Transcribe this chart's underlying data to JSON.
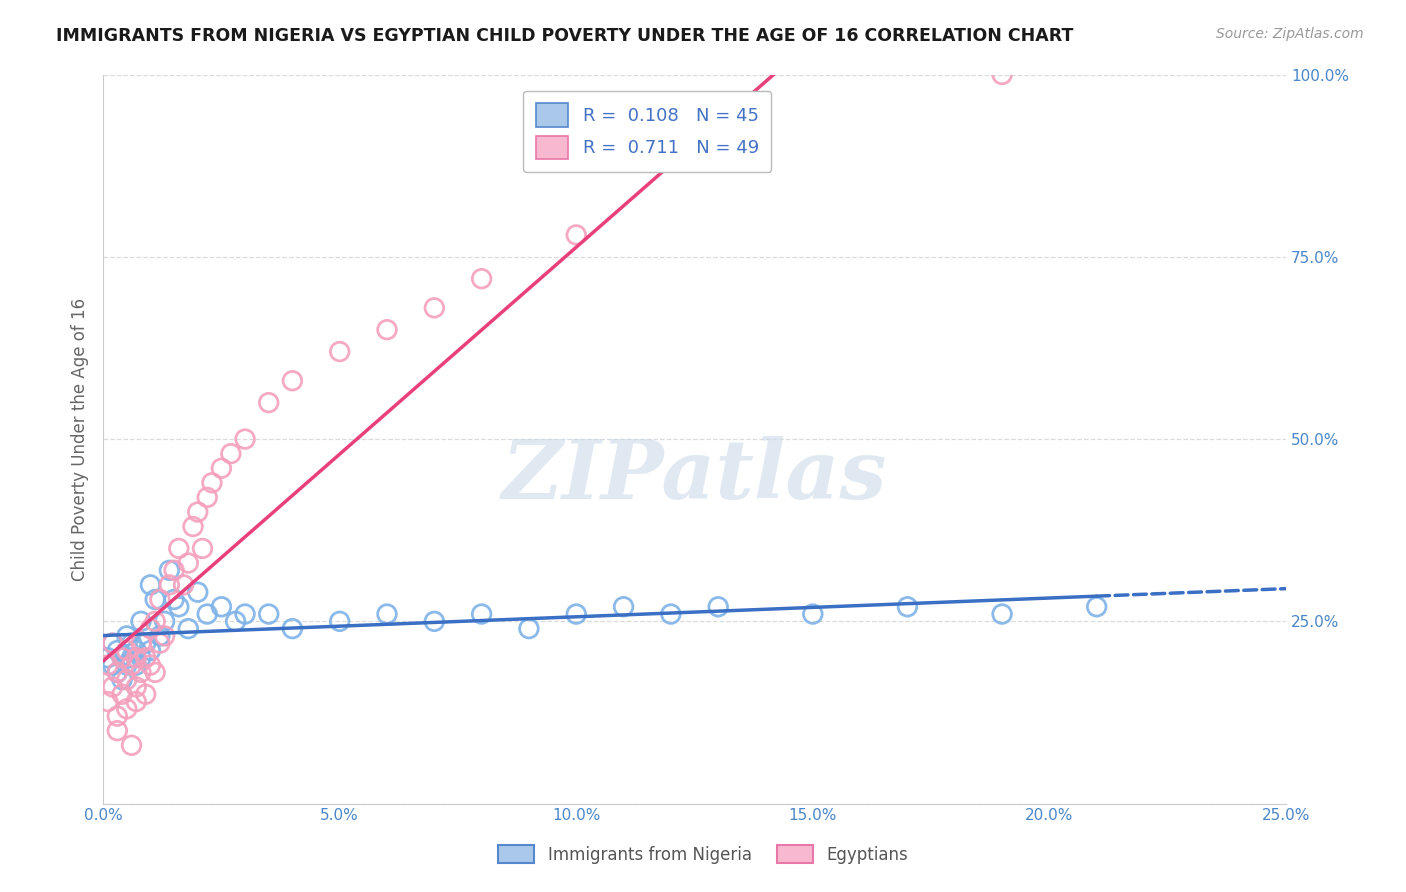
{
  "title": "IMMIGRANTS FROM NIGERIA VS EGYPTIAN CHILD POVERTY UNDER THE AGE OF 16 CORRELATION CHART",
  "source_text": "Source: ZipAtlas.com",
  "ylabel": "Child Poverty Under the Age of 16",
  "watermark": "ZIPatlas",
  "xlim": [
    0.0,
    0.25
  ],
  "ylim": [
    0.0,
    1.0
  ],
  "xticks": [
    0.0,
    0.05,
    0.1,
    0.15,
    0.2,
    0.25
  ],
  "yticks": [
    0.0,
    0.25,
    0.5,
    0.75,
    1.0
  ],
  "xticklabels": [
    "0.0%",
    "5.0%",
    "10.0%",
    "15.0%",
    "20.0%",
    "25.0%"
  ],
  "yticklabels_right": [
    "",
    "25.0%",
    "50.0%",
    "75.0%",
    "100.0%"
  ],
  "legend_bottom": [
    "Immigrants from Nigeria",
    "Egyptians"
  ],
  "series1_color": "#7fb3e8",
  "series1_line_color": "#3a6fc4",
  "series1_R": 0.108,
  "series1_N": 45,
  "series2_color": "#f4a0bc",
  "series2_line_color": "#e8407a",
  "series2_R": 0.711,
  "series2_N": 49,
  "background_color": "#ffffff",
  "grid_color": "#d8d8d8",
  "nigeria_x": [
    0.001,
    0.002,
    0.002,
    0.003,
    0.003,
    0.004,
    0.004,
    0.005,
    0.005,
    0.006,
    0.006,
    0.007,
    0.007,
    0.008,
    0.008,
    0.009,
    0.01,
    0.01,
    0.011,
    0.012,
    0.013,
    0.014,
    0.015,
    0.016,
    0.018,
    0.02,
    0.022,
    0.025,
    0.028,
    0.03,
    0.035,
    0.04,
    0.05,
    0.06,
    0.07,
    0.08,
    0.09,
    0.1,
    0.11,
    0.12,
    0.13,
    0.15,
    0.17,
    0.19,
    0.21
  ],
  "nigeria_y": [
    0.2,
    0.19,
    0.22,
    0.18,
    0.21,
    0.2,
    0.17,
    0.19,
    0.23,
    0.2,
    0.22,
    0.19,
    0.21,
    0.2,
    0.25,
    0.22,
    0.21,
    0.3,
    0.28,
    0.23,
    0.25,
    0.32,
    0.28,
    0.27,
    0.24,
    0.29,
    0.26,
    0.27,
    0.25,
    0.26,
    0.26,
    0.24,
    0.25,
    0.26,
    0.25,
    0.26,
    0.24,
    0.26,
    0.27,
    0.26,
    0.27,
    0.26,
    0.27,
    0.26,
    0.27
  ],
  "egypt_x": [
    0.001,
    0.001,
    0.002,
    0.002,
    0.003,
    0.003,
    0.003,
    0.004,
    0.004,
    0.005,
    0.005,
    0.005,
    0.006,
    0.006,
    0.007,
    0.007,
    0.007,
    0.008,
    0.008,
    0.009,
    0.009,
    0.01,
    0.01,
    0.011,
    0.011,
    0.012,
    0.012,
    0.013,
    0.014,
    0.015,
    0.016,
    0.017,
    0.018,
    0.019,
    0.02,
    0.021,
    0.022,
    0.023,
    0.025,
    0.027,
    0.03,
    0.035,
    0.04,
    0.05,
    0.06,
    0.07,
    0.08,
    0.1,
    0.19
  ],
  "egypt_y": [
    0.19,
    0.14,
    0.16,
    0.22,
    0.18,
    0.1,
    0.12,
    0.2,
    0.15,
    0.17,
    0.13,
    0.21,
    0.19,
    0.08,
    0.16,
    0.2,
    0.14,
    0.18,
    0.22,
    0.15,
    0.2,
    0.19,
    0.24,
    0.25,
    0.18,
    0.28,
    0.22,
    0.23,
    0.3,
    0.32,
    0.35,
    0.3,
    0.33,
    0.38,
    0.4,
    0.35,
    0.42,
    0.44,
    0.46,
    0.48,
    0.5,
    0.55,
    0.58,
    0.62,
    0.65,
    0.68,
    0.72,
    0.78,
    1.0
  ]
}
